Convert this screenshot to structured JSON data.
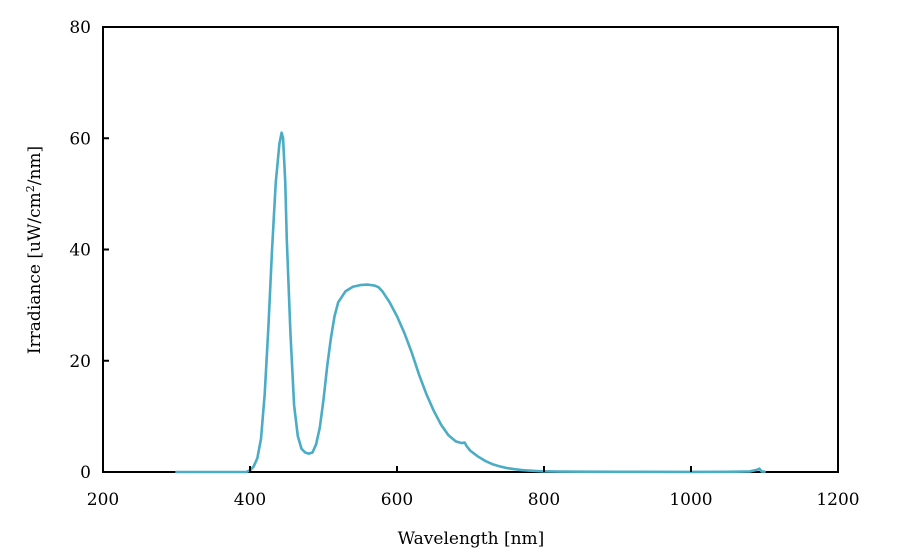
{
  "chart_data": {
    "type": "line",
    "title": "",
    "xlabel": "Wavelength [nm]",
    "ylabel_parts": [
      "Irradiance [uW/cm",
      "2",
      "/nm]"
    ],
    "xlim": [
      200,
      1200
    ],
    "ylim": [
      0,
      80
    ],
    "xticks": [
      200,
      400,
      600,
      800,
      1000,
      1200
    ],
    "yticks": [
      0,
      20,
      40,
      60,
      80
    ],
    "grid": false,
    "legend": "none",
    "line_color": "#4BACC6",
    "series": [
      {
        "x": [
          300,
          350,
          395,
          400,
          405,
          410,
          415,
          420,
          425,
          430,
          435,
          440,
          443,
          445,
          448,
          450,
          455,
          460,
          465,
          470,
          475,
          480,
          485,
          490,
          495,
          500,
          505,
          510,
          515,
          520,
          530,
          540,
          550,
          560,
          565,
          570,
          575,
          580,
          590,
          600,
          610,
          620,
          630,
          640,
          650,
          660,
          670,
          680,
          688,
          692,
          695,
          700,
          710,
          720,
          730,
          740,
          750,
          760,
          770,
          780,
          790,
          800,
          820,
          850,
          900,
          1000,
          1050,
          1080,
          1090,
          1093,
          1096,
          1100
        ],
        "y": [
          0,
          0,
          0,
          0.3,
          1.0,
          2.5,
          6.0,
          14.0,
          26.0,
          40.0,
          52.0,
          59.0,
          61.0,
          60.0,
          52.0,
          42.0,
          25.0,
          12.0,
          6.5,
          4.2,
          3.5,
          3.3,
          3.5,
          5.0,
          8.0,
          13.0,
          19.0,
          24.0,
          28.0,
          30.5,
          32.5,
          33.3,
          33.6,
          33.7,
          33.6,
          33.5,
          33.2,
          32.5,
          30.5,
          28.0,
          25.0,
          21.5,
          17.5,
          14.0,
          11.0,
          8.5,
          6.6,
          5.5,
          5.2,
          5.3,
          4.6,
          3.8,
          2.8,
          2.0,
          1.4,
          1.0,
          0.7,
          0.5,
          0.35,
          0.25,
          0.18,
          0.12,
          0.08,
          0.05,
          0.03,
          0.02,
          0.03,
          0.1,
          0.4,
          0.6,
          0.1,
          0.05
        ]
      }
    ]
  }
}
